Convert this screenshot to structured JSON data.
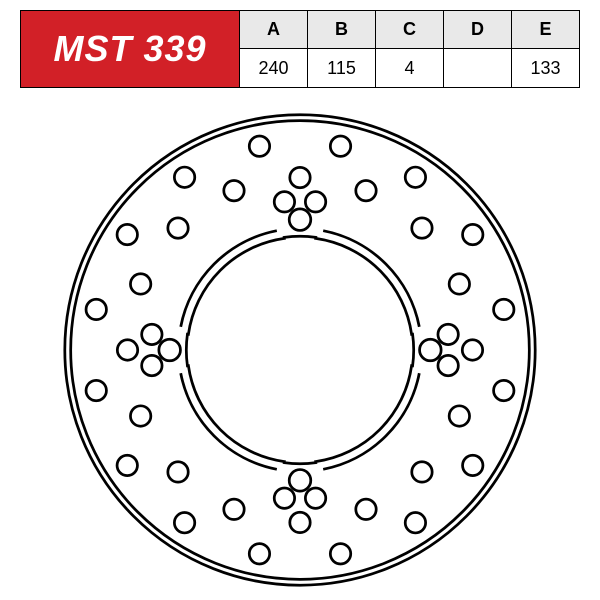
{
  "part_number": "MST 339",
  "table": {
    "headers": [
      "A",
      "B",
      "C",
      "D",
      "E"
    ],
    "values": [
      "240",
      "115",
      "4",
      "",
      "133"
    ]
  },
  "colors": {
    "accent": "#d22027",
    "header_bg": "#e9e9e9",
    "line": "#000000",
    "bg": "#ffffff"
  },
  "disc": {
    "outer_d": 240,
    "inner_d": 115,
    "pcd": 133,
    "bolt_holes": 4,
    "stroke_width": 1.4,
    "vent_ring_1": {
      "r": 88,
      "hole_r": 5.2,
      "count": 16,
      "offset_deg": 0
    },
    "vent_ring_2": {
      "r": 106,
      "hole_r": 5.2,
      "count": 16,
      "offset_deg": 11.25
    },
    "vent_pair": {
      "r": 73,
      "hole_r": 5.2,
      "spread_deg": 7
    },
    "mount_hole_r": 5.5,
    "tab_width_deg": 16,
    "tab_inner_r": 58,
    "brace_inner_r": 62
  }
}
